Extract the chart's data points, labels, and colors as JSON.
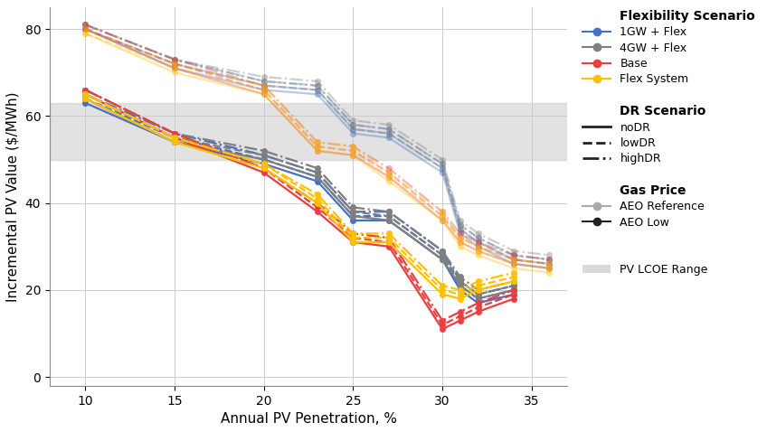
{
  "x_aeo_low": [
    10,
    15,
    20,
    23,
    25,
    27,
    30,
    31,
    32,
    34
  ],
  "x_aeo_ref": [
    10,
    15,
    20,
    23,
    25,
    27,
    30,
    31,
    32,
    34,
    36
  ],
  "series": {
    "1GW_Flex_noDR_low": [
      63,
      54,
      49,
      45,
      36,
      36,
      27,
      20,
      17,
      19
    ],
    "1GW_Flex_lowDR_low": [
      64,
      55,
      50,
      46,
      37,
      37,
      28,
      21,
      18,
      20
    ],
    "1GW_Flex_highDR_low": [
      65,
      56,
      51,
      47,
      38,
      38,
      29,
      22,
      19,
      21
    ],
    "4GW_Flex_noDR_low": [
      64,
      54,
      50,
      46,
      37,
      36,
      27,
      21,
      18,
      20
    ],
    "4GW_Flex_lowDR_low": [
      65,
      55,
      51,
      47,
      38,
      37,
      28,
      22,
      19,
      21
    ],
    "4GW_Flex_highDR_low": [
      66,
      56,
      52,
      48,
      39,
      38,
      29,
      23,
      20,
      22
    ],
    "Base_noDR_low": [
      65,
      55,
      47,
      38,
      31,
      30,
      11,
      13,
      15,
      18
    ],
    "Base_lowDR_low": [
      66,
      56,
      48,
      39,
      32,
      31,
      12,
      14,
      16,
      19
    ],
    "Base_highDR_low": [
      66,
      56,
      48,
      40,
      33,
      32,
      13,
      15,
      17,
      20
    ],
    "FlexSys_noDR_low": [
      64,
      54,
      48,
      40,
      31,
      31,
      19,
      18,
      20,
      22
    ],
    "FlexSys_lowDR_low": [
      65,
      55,
      49,
      41,
      32,
      32,
      20,
      19,
      21,
      23
    ],
    "FlexSys_highDR_low": [
      65,
      55,
      49,
      42,
      33,
      33,
      21,
      20,
      22,
      24
    ],
    "1GW_Flex_noDR_ref": [
      80,
      71,
      66,
      65,
      56,
      55,
      47,
      33,
      30,
      26,
      25
    ],
    "1GW_Flex_lowDR_ref": [
      80,
      72,
      67,
      66,
      57,
      56,
      48,
      34,
      31,
      27,
      26
    ],
    "1GW_Flex_highDR_ref": [
      81,
      73,
      68,
      67,
      58,
      57,
      49,
      35,
      32,
      28,
      27
    ],
    "4GW_Flex_noDR_ref": [
      80,
      72,
      67,
      66,
      57,
      56,
      48,
      34,
      31,
      27,
      26
    ],
    "4GW_Flex_lowDR_ref": [
      81,
      73,
      68,
      67,
      58,
      57,
      49,
      35,
      32,
      28,
      27
    ],
    "4GW_Flex_highDR_ref": [
      81,
      73,
      69,
      68,
      59,
      58,
      50,
      36,
      33,
      29,
      28
    ],
    "Base_noDR_ref": [
      80,
      71,
      65,
      52,
      51,
      46,
      36,
      31,
      29,
      26,
      25
    ],
    "Base_lowDR_ref": [
      80,
      72,
      66,
      53,
      52,
      47,
      37,
      32,
      30,
      27,
      26
    ],
    "Base_highDR_ref": [
      81,
      73,
      67,
      54,
      53,
      48,
      38,
      33,
      31,
      28,
      27
    ],
    "FlexSys_noDR_ref": [
      79,
      70,
      65,
      52,
      51,
      45,
      36,
      30,
      28,
      25,
      24
    ],
    "FlexSys_lowDR_ref": [
      79,
      71,
      66,
      53,
      52,
      46,
      37,
      31,
      29,
      26,
      25
    ],
    "FlexSys_highDR_ref": [
      80,
      72,
      67,
      54,
      53,
      47,
      38,
      32,
      30,
      27,
      26
    ]
  },
  "flex_colors": {
    "1GW_Flex": "#4472c4",
    "4GW_Flex": "#7f7f7f",
    "Base": "#e84040",
    "FlexSys": "#ffc000"
  },
  "lcoe_range": [
    50,
    63
  ],
  "lcoe_color": "#d0d0d0",
  "ylabel": "Incremental PV Value ($/MWh)",
  "xlabel": "Annual PV Penetration, %",
  "xlim": [
    8,
    37
  ],
  "ylim": [
    -2,
    85
  ],
  "xticks": [
    10,
    15,
    20,
    25,
    30,
    35
  ],
  "yticks": [
    0,
    20,
    40,
    60,
    80
  ],
  "bg_color": "#ffffff",
  "grid_color": "#cccccc",
  "legend_flex_title": "Flexibility Scenario",
  "legend_flex_labels": [
    "1GW + Flex",
    "4GW + Flex",
    "Base",
    "Flex System"
  ],
  "legend_flex_colors": [
    "#4472c4",
    "#7f7f7f",
    "#e84040",
    "#ffc000"
  ],
  "legend_dr_title": "DR Scenario",
  "legend_dr_labels": [
    "noDR",
    "lowDR",
    "highDR"
  ],
  "legend_gas_title": "Gas Price",
  "legend_gas_labels": [
    "AEO Reference",
    "AEO Low"
  ],
  "legend_gas_colors": [
    "#aaaaaa",
    "#222222"
  ],
  "legend_lcoe_label": "PV LCOE Range"
}
